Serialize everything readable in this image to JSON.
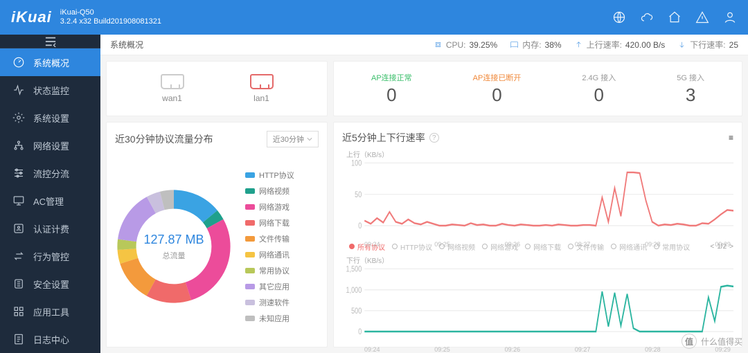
{
  "brand": "iKuai",
  "product_name": "iKuai-Q50",
  "build": "3.2.4 x32 Build201908081321",
  "top_icons": [
    "globe-icon",
    "cloud-icon",
    "home-icon",
    "alert-icon",
    "user-icon"
  ],
  "sidebar": {
    "items": [
      {
        "label": "系统概况",
        "icon": "gauge"
      },
      {
        "label": "状态监控",
        "icon": "activity"
      },
      {
        "label": "系统设置",
        "icon": "gear"
      },
      {
        "label": "网络设置",
        "icon": "network"
      },
      {
        "label": "流控分流",
        "icon": "sliders"
      },
      {
        "label": "AC管理",
        "icon": "screen"
      },
      {
        "label": "认证计费",
        "icon": "badge"
      },
      {
        "label": "行为管控",
        "icon": "swap"
      },
      {
        "label": "安全设置",
        "icon": "shield"
      },
      {
        "label": "应用工具",
        "icon": "grid"
      },
      {
        "label": "日志中心",
        "icon": "doc"
      }
    ],
    "active": 0
  },
  "statusbar": {
    "tab": "系统概况",
    "cpu_label": "CPU:",
    "cpu_value": "39.25%",
    "mem_label": "内存:",
    "mem_value": "38%",
    "up_label": "上行速率:",
    "up_value": "420.00 B/s",
    "down_label": "下行速率:",
    "down_value": "25"
  },
  "ports": [
    {
      "name": "wan1",
      "kind": "wan"
    },
    {
      "name": "lan1",
      "kind": "lan"
    }
  ],
  "ap_stats": [
    {
      "label": "AP连接正常",
      "value": "0",
      "cls": "ok"
    },
    {
      "label": "AP连接已断开",
      "value": "0",
      "cls": "warn"
    },
    {
      "label": "2.4G 接入",
      "value": "0",
      "cls": "gray"
    },
    {
      "label": "5G 接入",
      "value": "3",
      "cls": "gray"
    }
  ],
  "protocol_card": {
    "title": "近30分钟协议流量分布",
    "selector": "近30分钟",
    "total_value": "127.87 MB",
    "total_label": "总流量",
    "legend": [
      {
        "name": "HTTP协议",
        "color": "#3aa3e3",
        "pct": 14
      },
      {
        "name": "网络视频",
        "color": "#1fa08c",
        "pct": 3
      },
      {
        "name": "网络游戏",
        "color": "#ec4c9a",
        "pct": 28
      },
      {
        "name": "网络下载",
        "color": "#f06a6a",
        "pct": 13
      },
      {
        "name": "文件传输",
        "color": "#f39a3c",
        "pct": 12
      },
      {
        "name": "网络通讯",
        "color": "#f5c443",
        "pct": 4
      },
      {
        "name": "常用协议",
        "color": "#b8c85a",
        "pct": 3
      },
      {
        "name": "其它应用",
        "color": "#b89ae6",
        "pct": 15
      },
      {
        "name": "测速软件",
        "color": "#c9c0de",
        "pct": 4
      },
      {
        "name": "未知应用",
        "color": "#bfbfbf",
        "pct": 4
      }
    ]
  },
  "speed_card": {
    "title": "近5分钟上下行速率",
    "menu_icon": "≡",
    "up_label": "上行（KB/s）",
    "down_label": "下行（KB/s）",
    "up_yticks": [
      "100",
      "50",
      "0"
    ],
    "down_yticks": [
      "1,500",
      "1,000",
      "500",
      "0"
    ],
    "xticks": [
      "09:24",
      "09:25",
      "09:26",
      "09:27",
      "09:28",
      "09:29"
    ],
    "up_color": "#f07a7a",
    "down_color": "#2bb5a0",
    "up_ymax": 100,
    "down_ymax": 1500,
    "up_series": [
      8,
      3,
      12,
      5,
      22,
      6,
      3,
      10,
      4,
      2,
      6,
      3,
      0,
      0,
      2,
      1,
      0,
      4,
      1,
      2,
      0,
      0,
      3,
      1,
      0,
      2,
      1,
      0,
      0,
      1,
      0,
      2,
      1,
      0,
      0,
      1,
      1,
      0,
      45,
      6,
      60,
      15,
      85,
      85,
      84,
      40,
      6,
      0,
      2,
      1,
      3,
      2,
      0,
      0,
      4,
      3,
      10,
      18,
      25,
      24
    ],
    "down_series": [
      0,
      0,
      0,
      0,
      0,
      0,
      0,
      0,
      0,
      0,
      0,
      0,
      0,
      0,
      0,
      0,
      0,
      0,
      0,
      0,
      0,
      0,
      0,
      0,
      0,
      0,
      0,
      0,
      0,
      0,
      0,
      0,
      0,
      0,
      0,
      0,
      0,
      0,
      960,
      120,
      930,
      140,
      900,
      80,
      0,
      0,
      0,
      0,
      0,
      0,
      0,
      0,
      0,
      0,
      0,
      820,
      250,
      1070,
      1100,
      1080
    ],
    "filters": [
      "所有协议",
      "HTTP协议",
      "网络视频",
      "网络游戏",
      "网络下载",
      "文件传输",
      "网络通讯",
      "常用协议"
    ],
    "filter_active": 0,
    "pager": "1/2"
  },
  "watermark": "什么值得买"
}
